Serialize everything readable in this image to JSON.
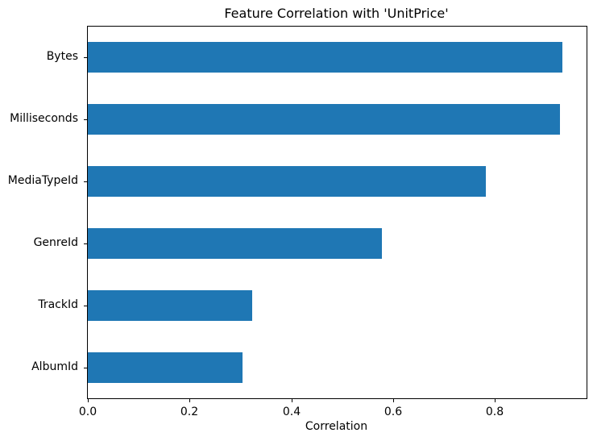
{
  "chart_data": {
    "type": "bar",
    "orientation": "horizontal",
    "title": "Feature Correlation with 'UnitPrice'",
    "xlabel": "Correlation",
    "ylabel": "",
    "categories": [
      "Bytes",
      "Milliseconds",
      "MediaTypeId",
      "GenreId",
      "TrackId",
      "AlbumId"
    ],
    "values": [
      0.933,
      0.928,
      0.782,
      0.578,
      0.323,
      0.304
    ],
    "xlim": [
      0,
      0.98
    ],
    "xticks": [
      0.0,
      0.2,
      0.4,
      0.6,
      0.8
    ],
    "xtick_labels": [
      "0.0",
      "0.2",
      "0.4",
      "0.6",
      "0.8"
    ],
    "bar_color": "#1f77b4",
    "axis_color": "#000000",
    "text_color": "#000000",
    "background_color": "#ffffff",
    "grid": false,
    "legend": false
  }
}
